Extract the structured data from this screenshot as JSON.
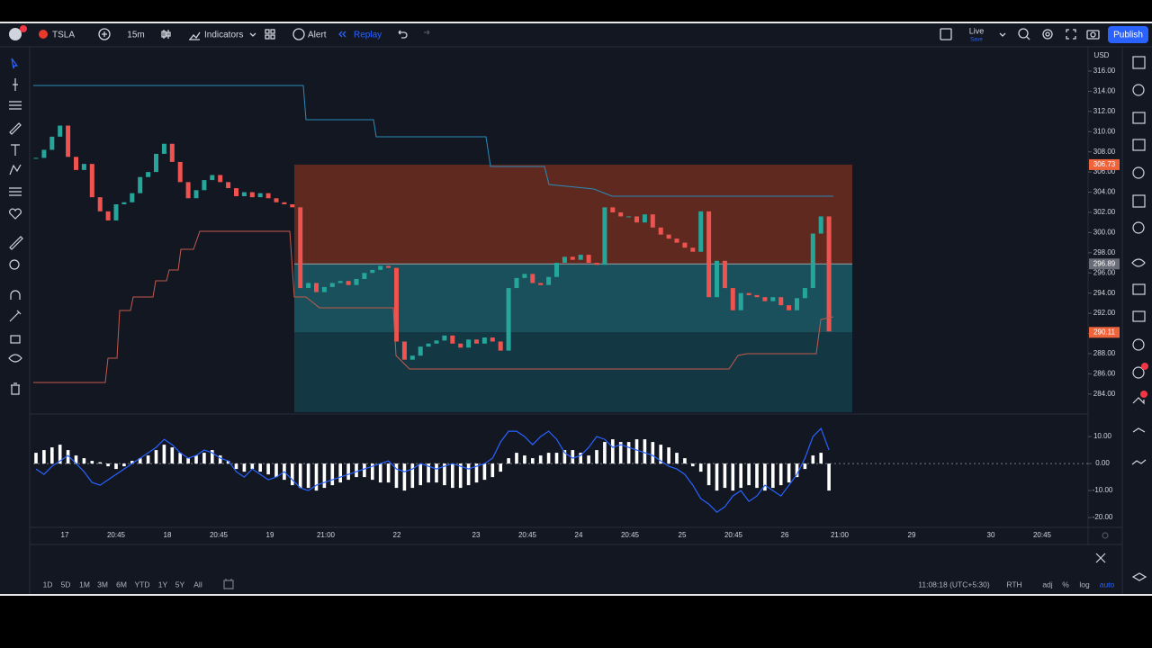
{
  "toolbar": {
    "symbol": "TSLA",
    "interval": "15m",
    "indicators": "Indicators",
    "alert": "Alert",
    "replay": "Replay",
    "live": "Live",
    "save": "Save",
    "publish": "Publish"
  },
  "chart_data": [
    {
      "type": "candlestick",
      "currency": "USD",
      "up_color": "#26a69a",
      "down_color": "#ef5350",
      "close": [
        307.4,
        308.2,
        309.5,
        310.6,
        307.5,
        306.2,
        306.8,
        303.5,
        302.1,
        301.2,
        302.8,
        303.0,
        303.9,
        305.5,
        306.0,
        307.8,
        308.8,
        307.0,
        305.0,
        303.4,
        304.2,
        305.2,
        305.7,
        305.0,
        304.4,
        303.6,
        304.0,
        303.5,
        303.9,
        303.4,
        303.0,
        302.8,
        302.5,
        294.5,
        295.0,
        294.1,
        294.6,
        295.0,
        295.2,
        294.8,
        295.4,
        296.0,
        296.3,
        296.7,
        296.5,
        289.2,
        287.4,
        287.8,
        288.7,
        289.0,
        289.3,
        289.8,
        289.0,
        288.6,
        289.4,
        289.0,
        289.6,
        289.2,
        288.3,
        294.5,
        295.5,
        295.9,
        295.0,
        294.8,
        295.6,
        297.0,
        297.6,
        297.3,
        297.8,
        297.0,
        296.8,
        302.5,
        302.0,
        301.6,
        301.6,
        301.0,
        301.8,
        300.5,
        299.8,
        299.4,
        299.0,
        298.5,
        298.1,
        302.1,
        293.6,
        297.2,
        294.5,
        292.3,
        294.0,
        293.8,
        293.6,
        293.2,
        293.6,
        292.8,
        292.3,
        293.5,
        294.5,
        299.9,
        301.6,
        290.2
      ],
      "ylim": [
        282.2,
        318.05
      ],
      "yticks": [
        {
          "value": 316,
          "label": "316.00"
        },
        {
          "value": 314,
          "label": "314.00"
        },
        {
          "value": 312,
          "label": "312.00"
        },
        {
          "value": 310,
          "label": "310.00"
        },
        {
          "value": 308,
          "label": "308.00"
        },
        {
          "value": 306,
          "label": "306.00"
        },
        {
          "value": 304,
          "label": "304.00"
        },
        {
          "value": 302,
          "label": "302.00"
        },
        {
          "value": 300,
          "label": "300.00"
        },
        {
          "value": 298,
          "label": "298.00"
        },
        {
          "value": 296,
          "label": "296.00"
        },
        {
          "value": 294,
          "label": "294.00"
        },
        {
          "value": 292,
          "label": "292.00"
        },
        {
          "value": 290,
          "label": "290.00"
        },
        {
          "value": 288,
          "label": "288.00"
        },
        {
          "value": 286,
          "label": "286.00"
        },
        {
          "value": 284,
          "label": "284.00"
        }
      ],
      "price_labels": [
        306.73,
        296.89,
        290.11
      ],
      "x_labels": [
        "17",
        "20:45",
        "18",
        "20:45",
        "19",
        "21:00",
        "22",
        "23",
        "20:45",
        "24",
        "20:45",
        "25",
        "20:45",
        "26",
        "21:00",
        "29",
        "30",
        "20:45"
      ]
    },
    {
      "type": "bar-line",
      "bar_color": "#ffffff",
      "line_color": "#2962ff",
      "bars": [
        4,
        5,
        6,
        7,
        5,
        3,
        2,
        1,
        0.5,
        -1,
        -2,
        -1,
        1,
        2,
        3,
        5,
        7,
        6,
        4,
        2,
        3,
        4,
        5,
        3,
        1,
        -2,
        -3,
        -2,
        -3,
        -4,
        -5,
        -6,
        -8,
        -9,
        -9,
        -10,
        -9,
        -8,
        -7,
        -6,
        -5,
        -5,
        -6,
        -7,
        -7,
        -9,
        -10,
        -9,
        -8,
        -7,
        -7,
        -8,
        -9,
        -9,
        -8,
        -7,
        -6,
        -5,
        -3,
        2,
        4,
        3,
        2,
        3,
        4,
        4,
        5,
        5,
        4,
        3,
        5,
        8,
        9,
        8,
        8,
        9,
        9,
        8,
        7,
        6,
        4,
        2,
        -1,
        -3,
        -8,
        -10,
        -9,
        -10,
        -9,
        -8,
        -9,
        -10,
        -9,
        -8,
        -7,
        -5,
        -2,
        3,
        4,
        -10
      ],
      "line": [
        -2,
        -4,
        -1,
        1,
        3,
        0,
        -3,
        -7,
        -8,
        -6,
        -4,
        -2,
        0,
        2,
        4,
        6,
        9,
        7,
        4,
        2,
        3,
        5,
        4,
        2,
        1,
        -3,
        -5,
        -2,
        -4,
        -6,
        -5,
        -3,
        -6,
        -9,
        -10,
        -8,
        -7,
        -6,
        -5,
        -4,
        -3,
        -2,
        -1,
        0,
        1,
        -2,
        -3,
        -2,
        0,
        -1,
        -2,
        -1,
        0,
        -1,
        -2,
        -1,
        0,
        2,
        8,
        12,
        12,
        10,
        7,
        10,
        12,
        9,
        4,
        2,
        3,
        6,
        10,
        9,
        6,
        7,
        6,
        5,
        4,
        3,
        1,
        -1,
        -2,
        -4,
        -8,
        -13,
        -15,
        -18,
        -16,
        -12,
        -10,
        -14,
        -12,
        -8,
        -10,
        -12,
        -8,
        -4,
        2,
        10,
        13,
        5
      ],
      "ylim": [
        -23.3,
        17.7
      ],
      "yticks": [
        {
          "value": 10,
          "label": "10.00"
        },
        {
          "value": 0,
          "label": "0.00"
        },
        {
          "value": -10,
          "label": "-10.00"
        },
        {
          "value": -20,
          "label": "-20.00"
        }
      ]
    }
  ],
  "bottom": {
    "ranges": [
      "1D",
      "5D",
      "1M",
      "3M",
      "6M",
      "YTD",
      "1Y",
      "5Y",
      "All"
    ],
    "clock": "11:08:18 (UTC+5:30)",
    "rth": "RTH",
    "adj": "adj",
    "percent": "%",
    "log": "log",
    "auto": "auto"
  }
}
